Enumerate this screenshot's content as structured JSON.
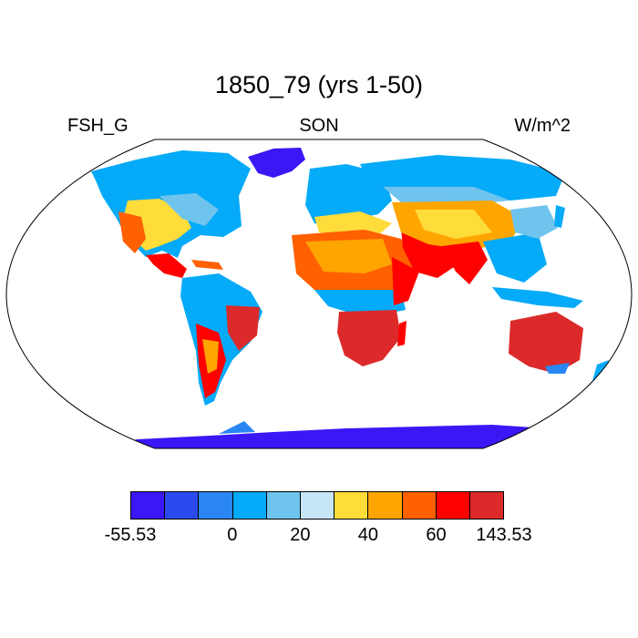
{
  "title": "1850_79 (yrs 1-50)",
  "left_label": "FSH_G",
  "center_label": "SON",
  "right_label": "W/m^2",
  "colorbar": {
    "colors": [
      "#3a18f5",
      "#2c4bee",
      "#2a86f2",
      "#05aaf8",
      "#6fc4ee",
      "#c6e5f7",
      "#fedc3a",
      "#ffa500",
      "#ff6000",
      "#ff0000",
      "#dc2a2a"
    ],
    "labels": [
      {
        "text": "-55.53",
        "index": 0
      },
      {
        "text": "0",
        "index": 3
      },
      {
        "text": "20",
        "index": 5
      },
      {
        "text": "40",
        "index": 7
      },
      {
        "text": "60",
        "index": 9
      },
      {
        "text": "143.53",
        "index": 11
      }
    ]
  }
}
